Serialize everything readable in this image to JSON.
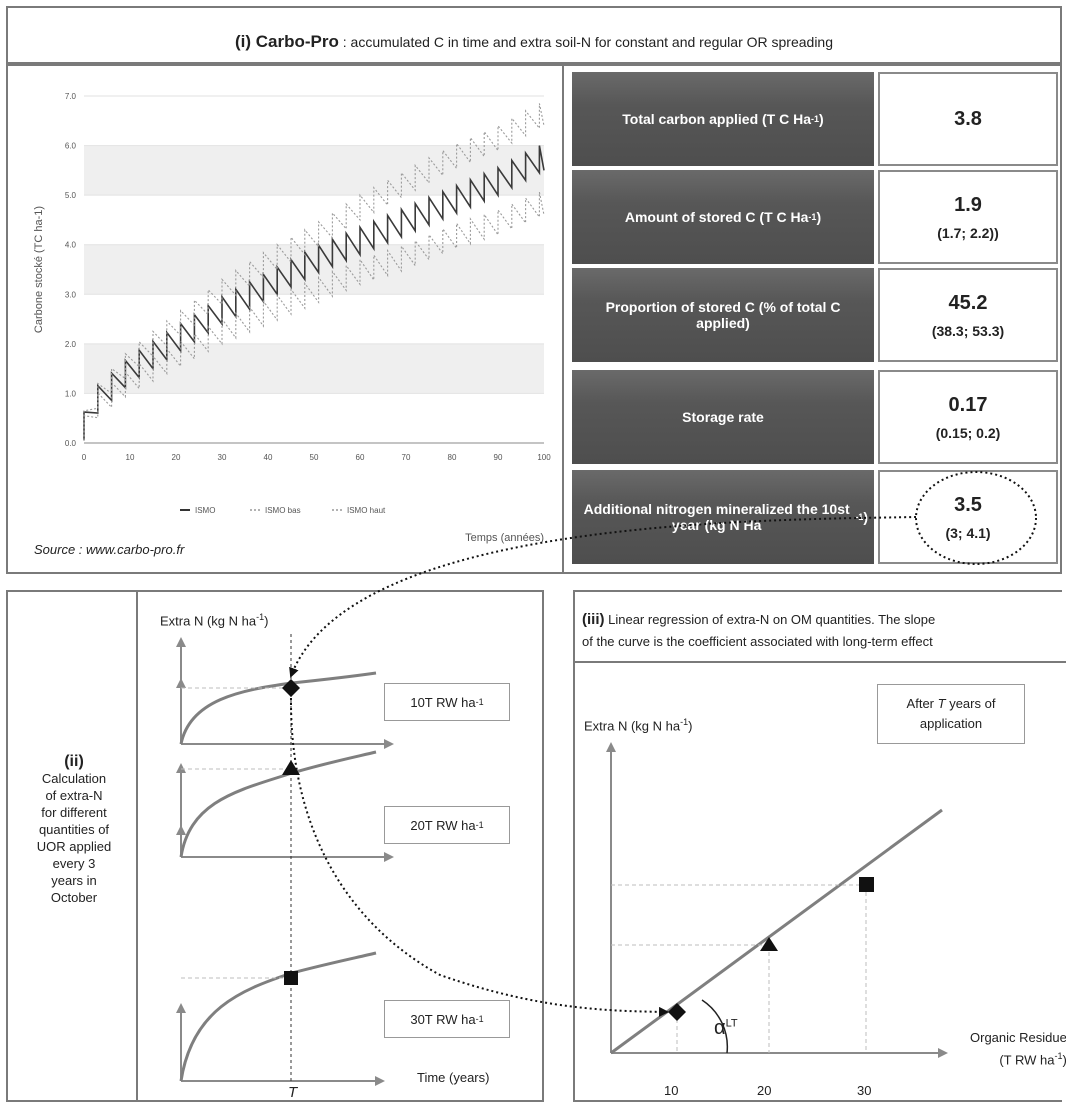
{
  "header": {
    "bold": "(i) Carbo-Pro",
    "rest": " : accumulated C in time and extra soil-N for constant and regular OR spreading"
  },
  "chart_data": {
    "type": "line",
    "xlabel": "Temps (années)",
    "ylabel": "Carbone stocké (TC ha-1)",
    "x_ticks": [
      "0",
      "10",
      "20",
      "30",
      "40",
      "50",
      "60",
      "70",
      "80",
      "90",
      "100"
    ],
    "y_ticks": [
      "0.0",
      "1.0",
      "2.0",
      "3.0",
      "4.0",
      "5.0",
      "6.0",
      "7.0"
    ],
    "xlim": [
      0,
      100
    ],
    "ylim": [
      0,
      7
    ],
    "period_years": 3,
    "series": [
      {
        "name": "ISMO",
        "style": "solid",
        "x": [
          0,
          10,
          20,
          30,
          40,
          50,
          60,
          70,
          80,
          90,
          100
        ],
        "y": [
          0.35,
          1.2,
          1.8,
          2.4,
          2.9,
          3.4,
          3.8,
          4.2,
          4.6,
          5.0,
          5.5
        ]
      },
      {
        "name": "ISMO bas",
        "style": "dotted",
        "x": [
          0,
          10,
          20,
          30,
          40,
          50,
          60,
          70,
          80,
          90,
          100
        ],
        "y": [
          0.3,
          1.0,
          1.5,
          2.0,
          2.4,
          2.8,
          3.2,
          3.5,
          3.9,
          4.2,
          4.6
        ]
      },
      {
        "name": "ISMO haut",
        "style": "dotted",
        "x": [
          0,
          10,
          20,
          30,
          40,
          50,
          60,
          70,
          80,
          90,
          100
        ],
        "y": [
          0.4,
          1.4,
          2.1,
          2.8,
          3.4,
          3.9,
          4.5,
          5.0,
          5.5,
          5.9,
          6.4
        ]
      }
    ]
  },
  "source": "Source : www.carbo-pro.fr",
  "table": [
    {
      "label": "Total carbon applied (T C Ha",
      "sup": "-1",
      "end": ")",
      "value": "3.8",
      "ci": ""
    },
    {
      "label": "Amount of stored C (T C Ha",
      "sup": "-1",
      "end": ")",
      "value": "1.9",
      "ci": "(1.7; 2.2))"
    },
    {
      "label": "Proportion of stored C (% of total C applied)",
      "sup": "",
      "end": "",
      "value": "45.2",
      "ci": "(38.3; 53.3)"
    },
    {
      "label": "Storage rate",
      "sup": "",
      "end": "",
      "value": "0.17",
      "ci": "(0.15; 0.2)"
    },
    {
      "label": "Additional nitrogen mineralized the 10st year (kg N Ha",
      "sup": "-1",
      "end": ")",
      "value": "3.5",
      "ci": "(3; 4.1)"
    }
  ],
  "panel_ii": {
    "title": "(ii)",
    "desc": [
      "Calculation",
      "of extra-N",
      "for different",
      "quantities of",
      "UOR applied",
      "every 3",
      "years in",
      "October"
    ],
    "ylabel": "Extra N (kg N ha",
    "ylabel_sup": "-1",
    "ylabel_end": ")",
    "levels": [
      "10T RW ha",
      "20T RW ha",
      "30T RW ha"
    ],
    "level_sup": "-1",
    "xlabel": "Time (years)",
    "t_label": "T"
  },
  "panel_iii": {
    "title_bold": "(iii)",
    "title_line1": " Linear regression  of extra-N on OM quantities. The slope",
    "title_line2": "of the curve is the coefficient associated with long-term effect",
    "ylabel": "Extra N (kg N ha",
    "ylabel_sup": "-1",
    "ylabel_end": ")",
    "note_line1_a": "After ",
    "note_T": "T",
    "note_line1_b": " years of",
    "note_line2": "application",
    "xlabel_line1": "Organic Residue",
    "xlabel_line2": "(T RW ha",
    "xlabel_sup": "-1",
    "xlabel_end": ")",
    "x_ticks": [
      "10",
      "20",
      "30"
    ],
    "alpha": "α",
    "alpha_sup": "LT"
  }
}
